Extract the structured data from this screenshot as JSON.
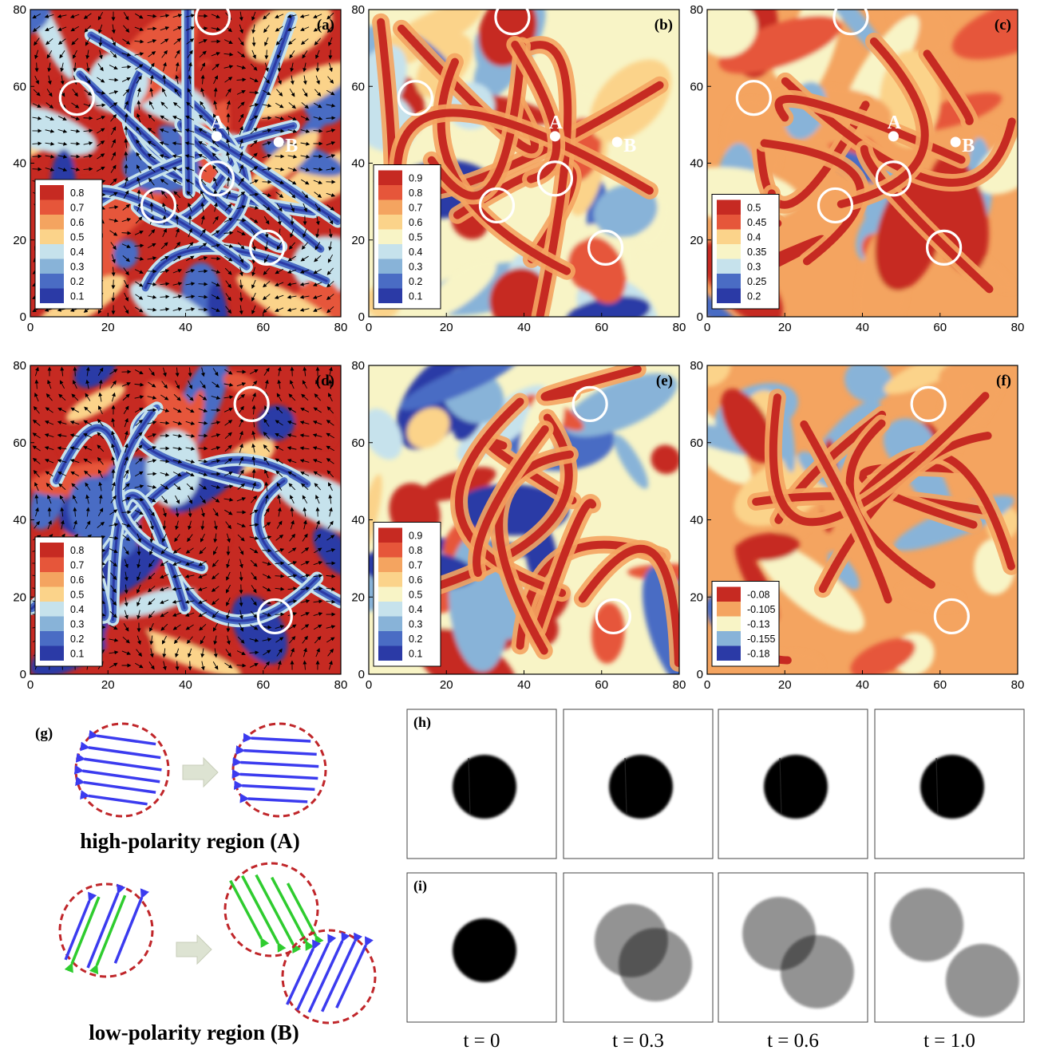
{
  "panels": [
    {
      "id": "a",
      "label": "(a)",
      "legend": [
        "0.8",
        "0.7",
        "0.6",
        "0.5",
        "0.4",
        "0.3",
        "0.2",
        "0.1"
      ],
      "show_points": true,
      "arrows": true,
      "style": "polar",
      "circles": [
        [
          47,
          78
        ],
        [
          12,
          57
        ],
        [
          33,
          29
        ],
        [
          48,
          36
        ],
        [
          61,
          18
        ]
      ]
    },
    {
      "id": "b",
      "label": "(b)",
      "legend": [
        "0.9",
        "0.8",
        "0.7",
        "0.6",
        "0.5",
        "0.4",
        "0.3",
        "0.2",
        "0.1"
      ],
      "show_points": true,
      "arrows": false,
      "style": "smooth",
      "circles": [
        [
          37,
          78
        ],
        [
          12,
          57
        ],
        [
          33,
          29
        ],
        [
          48,
          36
        ],
        [
          61,
          18
        ]
      ]
    },
    {
      "id": "c",
      "label": "(c)",
      "legend": [
        "0.5",
        "0.45",
        "0.4",
        "0.35",
        "0.3",
        "0.25",
        "0.2"
      ],
      "show_points": true,
      "arrows": false,
      "style": "warm",
      "circles": [
        [
          37,
          78
        ],
        [
          12,
          57
        ],
        [
          33,
          29
        ],
        [
          48,
          36
        ],
        [
          61,
          18
        ]
      ]
    },
    {
      "id": "d",
      "label": "(d)",
      "legend": [
        "0.8",
        "0.7",
        "0.6",
        "0.5",
        "0.4",
        "0.3",
        "0.2",
        "0.1"
      ],
      "show_points": false,
      "arrows": true,
      "style": "polar",
      "circles": [
        [
          57,
          70
        ],
        [
          63,
          15
        ]
      ]
    },
    {
      "id": "e",
      "label": "(e)",
      "legend": [
        "0.9",
        "0.8",
        "0.7",
        "0.6",
        "0.5",
        "0.4",
        "0.3",
        "0.2",
        "0.1"
      ],
      "show_points": false,
      "arrows": false,
      "style": "smooth",
      "circles": [
        [
          57,
          70
        ],
        [
          63,
          15
        ]
      ]
    },
    {
      "id": "f",
      "label": "(f)",
      "legend": [
        "-0.08",
        "-0.105",
        "-0.13",
        "-0.155",
        "-0.18"
      ],
      "show_points": false,
      "arrows": false,
      "style": "warm",
      "circles": [
        [
          57,
          70
        ],
        [
          63,
          15
        ]
      ]
    }
  ],
  "axes": {
    "ticks": [
      "0",
      "20",
      "40",
      "60",
      "80"
    ],
    "range": [
      0,
      80
    ]
  },
  "points": {
    "A": {
      "label": "A",
      "x": 48,
      "y": 47
    },
    "B": {
      "label": "B",
      "x": 64,
      "y": 45.5
    }
  },
  "schematic": {
    "label": "(g)",
    "high_caption": "high-polarity region (A)",
    "low_caption": "low-polarity region (B)",
    "colors": {
      "blue": "#3b3bef",
      "green": "#2ecc2e",
      "circle": "#c0262a",
      "arrow": "#dde3d2"
    }
  },
  "sequence": {
    "row_h_label": "(h)",
    "row_i_label": "(i)",
    "times": [
      "t = 0",
      "t = 0.3",
      "t = 0.6",
      "t = 1.0"
    ]
  },
  "colormap": [
    "#2b3aa6",
    "#4a6cc4",
    "#88b3d8",
    "#c6e2ec",
    "#f8f4c6",
    "#fbd38a",
    "#f4a460",
    "#e6563a",
    "#c62a22"
  ]
}
